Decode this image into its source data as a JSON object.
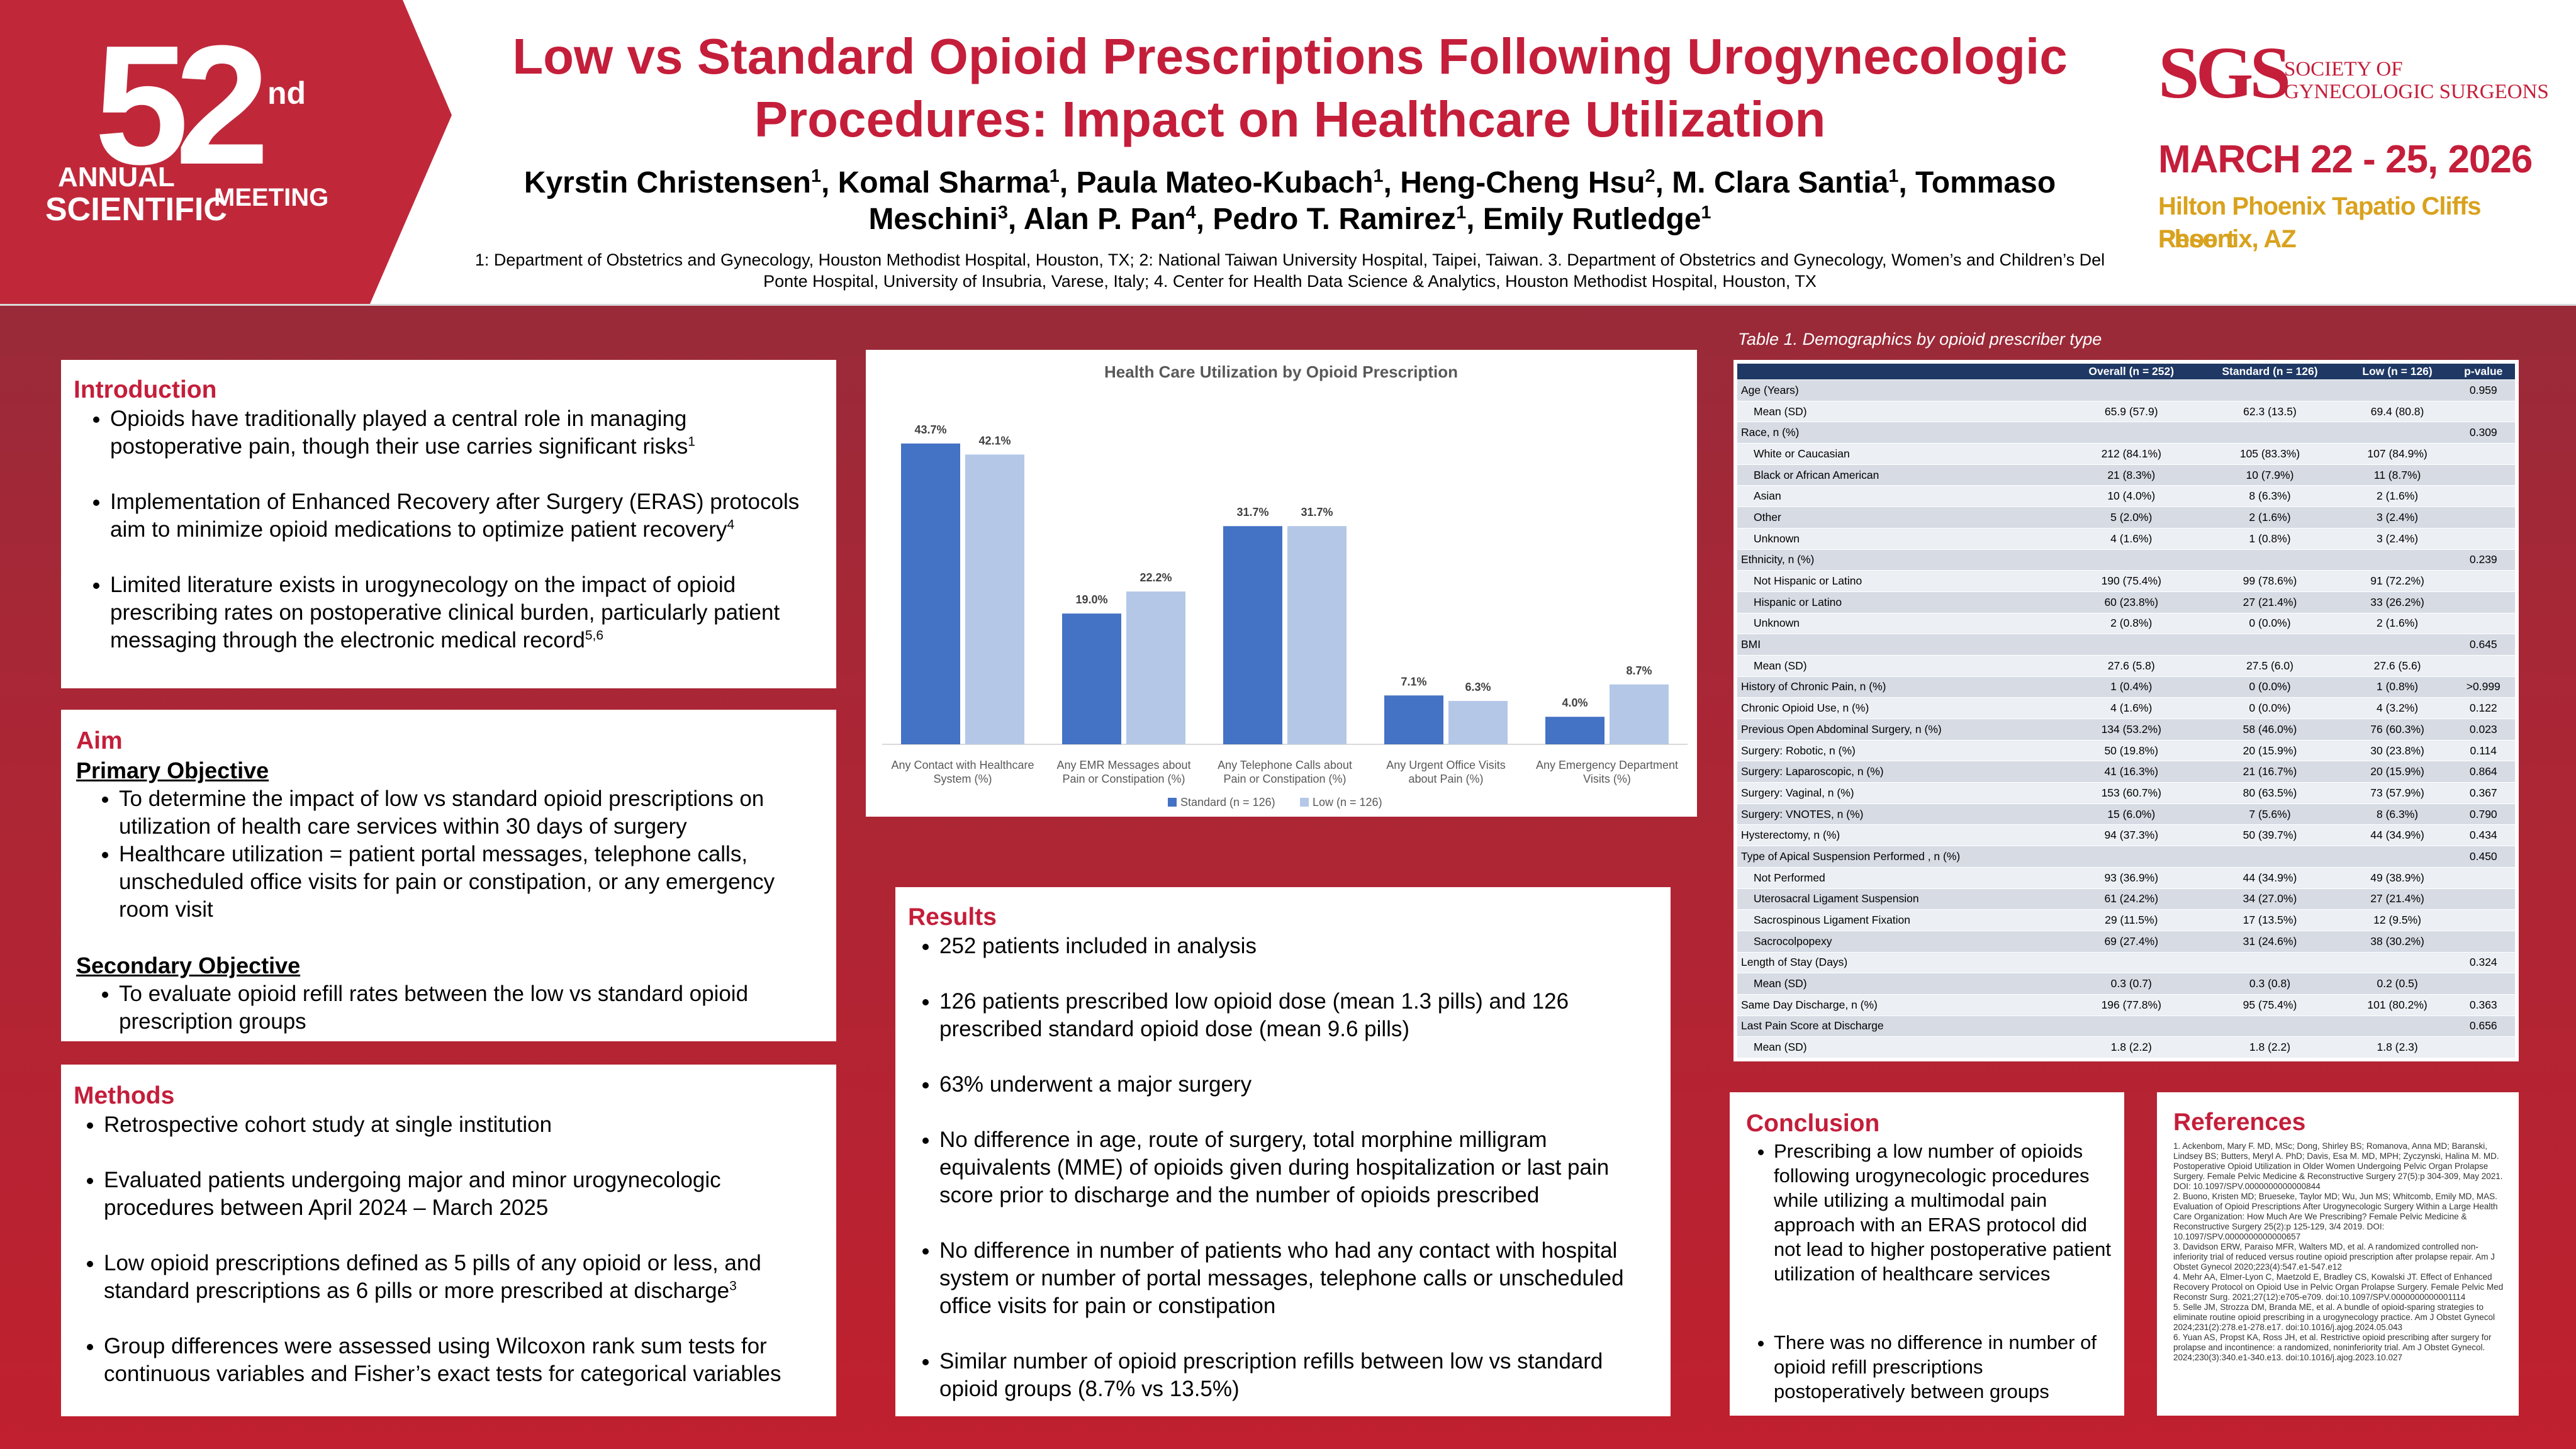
{
  "header": {
    "logo": {
      "number": "52",
      "suffix": "nd",
      "line1": "ANNUAL",
      "line2": "SCIENTIFIC",
      "line3": "MEETING"
    },
    "title": "Low vs Standard Opioid Prescriptions Following Urogynecologic Procedures: Impact on Healthcare Utilization",
    "authors": [
      {
        "text": "Kyrstin Christensen",
        "sup": "1"
      },
      {
        "text": ", Komal Sharma",
        "sup": "1"
      },
      {
        "text": ", Paula Mateo-Kubach",
        "sup": "1"
      },
      {
        "text": ", Heng-Cheng Hsu",
        "sup": "2"
      },
      {
        "text": ", M. Clara Santia",
        "sup": "1"
      },
      {
        "text": ", Tommaso Meschini",
        "sup": "3"
      },
      {
        "text": ", Alan P. Pan",
        "sup": "4"
      },
      {
        "text": ", Pedro T. Ramirez",
        "sup": "1"
      },
      {
        "text": ", Emily Rutledge",
        "sup": "1"
      }
    ],
    "affiliations": "1: Department of Obstetrics and Gynecology, Houston Methodist Hospital, Houston, TX; 2: National Taiwan University Hospital, Taipei, Taiwan. 3. Department of Obstetrics and Gynecology, Women’s and Children’s Del Ponte Hospital, University of Insubria, Varese, Italy; 4. Center for Health Data Science & Analytics, Houston Methodist Hospital, Houston, TX",
    "sponsor": {
      "acronym": "SGS",
      "name_line1": "SOCIETY OF",
      "name_line2": "GYNECOLOGIC SURGEONS",
      "dates": "MARCH 22 - 25, 2026",
      "venue": "Hilton Phoenix Tapatio Cliffs Resort",
      "city": "Phoenix, AZ"
    }
  },
  "introduction": {
    "heading": "Introduction",
    "bullets": [
      {
        "text": "Opioids have traditionally played a central role in managing postoperative pain, though their use carries significant risks",
        "sup": "1"
      },
      {
        "text": "Implementation of Enhanced Recovery after Surgery (ERAS) protocols aim to minimize opioid medications to optimize patient recovery",
        "sup": "4"
      },
      {
        "text": "Limited literature exists in urogynecology on the impact of opioid prescribing rates on postoperative clinical burden, particularly patient messaging  through the electronic medical record",
        "sup": "5,6"
      }
    ]
  },
  "aim": {
    "heading": "Aim",
    "primary": {
      "heading": "Primary Objective",
      "bullets": [
        {
          "text": "To determine the impact of low vs standard opioid prescriptions on utilization of health care services within 30 days of surgery"
        },
        {
          "text": "Healthcare utilization = patient portal messages, telephone calls, unscheduled office visits for pain or constipation, or any emergency room visit"
        }
      ]
    },
    "secondary": {
      "heading": "Secondary Objective",
      "bullets": [
        {
          "text": "To evaluate opioid refill rates between the low vs standard opioid prescription groups"
        }
      ]
    }
  },
  "methods": {
    "heading": "Methods",
    "bullets": [
      {
        "text": "Retrospective cohort study at single institution"
      },
      {
        "text": "Evaluated patients undergoing major and minor urogynecologic procedures between April 2024 – March 2025"
      },
      {
        "text": " Low opioid prescriptions defined as 5 pills of any opioid or less, and standard prescriptions as 6 pills or more prescribed at discharge",
        "sup": "3"
      },
      {
        "text": "Group differences were assessed using Wilcoxon rank sum tests for continuous variables and Fisher’s exact tests for categorical variables"
      }
    ]
  },
  "chart_data": {
    "type": "bar",
    "title": "Health Care Utilization by Opioid Prescription",
    "categories": [
      "Any Contact with Healthcare System (%)",
      "Any EMR Messages about Pain or Constipation (%)",
      "Any Telephone Calls about Pain or Constipation (%)",
      "Any Urgent Office Visits about Pain (%)",
      "Any Emergency Department Visits (%)"
    ],
    "series": [
      {
        "name": "Standard (n = 126)",
        "color": "#4472c4",
        "values": [
          43.7,
          19.0,
          31.7,
          7.1,
          4.0
        ],
        "value_labels": [
          "43.7%",
          "19.0%",
          "31.7%",
          "7.1%",
          "4.0%"
        ]
      },
      {
        "name": "Low (n = 126)",
        "color": "#b4c7e7",
        "values": [
          42.1,
          22.2,
          31.7,
          6.3,
          8.7
        ],
        "value_labels": [
          "42.1%",
          "22.2%",
          "31.7%",
          "6.3%",
          "8.7%"
        ]
      }
    ],
    "ylim": [
      0,
      50
    ],
    "legend": "bottom"
  },
  "results": {
    "heading": "Results",
    "bullets": [
      "252 patients included in analysis",
      "126 patients prescribed low opioid dose (mean 1.3 pills) and 126 prescribed standard opioid dose (mean 9.6 pills)",
      "63% underwent a major surgery",
      "No difference in age, route of surgery, total morphine milligram equivalents (MME) of opioids given during hospitalization or last pain score prior to  discharge and the number of opioids prescribed",
      "No difference in number of patients who had any contact with hospital system or number of portal messages, telephone calls or unscheduled office visits for pain or constipation",
      "Similar number of opioid prescription refills between low vs standard opioid groups (8.7% vs 13.5%)"
    ]
  },
  "table": {
    "caption": "Table 1. Demographics by opioid prescriber type",
    "columns": [
      "Overall (n = 252)",
      "Standard (n = 126)",
      "Low (n = 126)",
      "p-value"
    ],
    "sections": [
      {
        "label": "Age (Years)",
        "p": "0.959",
        "items": [
          [
            "Mean (SD)",
            "65.9 (57.9)",
            "62.3 (13.5)",
            "69.4 (80.8)"
          ]
        ]
      },
      {
        "label": "Race, n (%)",
        "p": "0.309",
        "items": [
          [
            "White or Caucasian",
            "212 (84.1%)",
            "105 (83.3%)",
            "107 (84.9%)"
          ],
          [
            "Black or African American",
            "21 (8.3%)",
            "10 (7.9%)",
            "11 (8.7%)"
          ],
          [
            "Asian",
            "10 (4.0%)",
            "8 (6.3%)",
            "2 (1.6%)"
          ],
          [
            "Other",
            "5 (2.0%)",
            "2 (1.6%)",
            "3 (2.4%)"
          ],
          [
            "Unknown",
            "4 (1.6%)",
            "1 (0.8%)",
            "3 (2.4%)"
          ]
        ]
      },
      {
        "label": "Ethnicity, n (%)",
        "p": "0.239",
        "items": [
          [
            "Not Hispanic or Latino",
            "190 (75.4%)",
            "99 (78.6%)",
            "91 (72.2%)"
          ],
          [
            "Hispanic or Latino",
            "60 (23.8%)",
            "27 (21.4%)",
            "33 (26.2%)"
          ],
          [
            "Unknown",
            "2 (0.8%)",
            "0 (0.0%)",
            "2 (1.6%)"
          ]
        ]
      },
      {
        "label": "BMI",
        "p": "0.645",
        "items": [
          [
            "Mean (SD)",
            "27.6 (5.8)",
            "27.5 (6.0)",
            "27.6 (5.6)"
          ]
        ]
      },
      {
        "label": "History of Chronic Pain, n (%)",
        "values": [
          "1 (0.4%)",
          "0 (0.0%)",
          "1 (0.8%)"
        ],
        "p": ">0.999"
      },
      {
        "label": "Chronic Opioid Use, n (%)",
        "values": [
          "4 (1.6%)",
          "0 (0.0%)",
          "4 (3.2%)"
        ],
        "p": "0.122"
      },
      {
        "label": "Previous Open Abdominal Surgery, n (%)",
        "values": [
          "134 (53.2%)",
          "58 (46.0%)",
          "76 (60.3%)"
        ],
        "p": "0.023"
      },
      {
        "label": "Surgery: Robotic, n (%)",
        "values": [
          "50 (19.8%)",
          "20 (15.9%)",
          "30 (23.8%)"
        ],
        "p": "0.114"
      },
      {
        "label": "Surgery: Laparoscopic, n (%)",
        "values": [
          "41 (16.3%)",
          "21 (16.7%)",
          "20 (15.9%)"
        ],
        "p": "0.864"
      },
      {
        "label": "Surgery: Vaginal, n (%)",
        "values": [
          "153 (60.7%)",
          "80 (63.5%)",
          "73 (57.9%)"
        ],
        "p": "0.367"
      },
      {
        "label": "Surgery: VNOTES, n (%)",
        "values": [
          "15 (6.0%)",
          "7 (5.6%)",
          "8 (6.3%)"
        ],
        "p": "0.790"
      },
      {
        "label": "Hysterectomy, n (%)",
        "values": [
          "94 (37.3%)",
          "50 (39.7%)",
          "44 (34.9%)"
        ],
        "p": "0.434"
      },
      {
        "label": "Type of Apical Suspension Performed , n (%)",
        "p": "0.450",
        "items": [
          [
            "Not Performed",
            "93 (36.9%)",
            "44 (34.9%)",
            "49 (38.9%)"
          ],
          [
            "Uterosacral Ligament Suspension",
            "61 (24.2%)",
            "34 (27.0%)",
            "27 (21.4%)"
          ],
          [
            "Sacrospinous Ligament Fixation",
            "29 (11.5%)",
            "17 (13.5%)",
            "12 (9.5%)"
          ],
          [
            "Sacrocolpopexy",
            "69 (27.4%)",
            "31 (24.6%)",
            "38 (30.2%)"
          ]
        ]
      },
      {
        "label": "Length of Stay (Days)",
        "p": "0.324",
        "items": [
          [
            "Mean (SD)",
            "0.3 (0.7)",
            "0.3 (0.8)",
            "0.2 (0.5)"
          ]
        ]
      },
      {
        "label": "Same Day Discharge, n (%)",
        "values": [
          "196 (77.8%)",
          "95 (75.4%)",
          "101 (80.2%)"
        ],
        "p": "0.363"
      },
      {
        "label": "Last Pain Score at Discharge",
        "p": "0.656",
        "items": [
          [
            "Mean (SD)",
            "1.8 (2.2)",
            "1.8 (2.2)",
            "1.8 (2.3)"
          ]
        ]
      }
    ]
  },
  "conclusion": {
    "heading": "Conclusion",
    "bullets": [
      "Prescribing a low number of opioids following urogynecologic procedures while utilizing a multimodal pain approach with an ERAS protocol did not lead to higher postoperative patient utilization of healthcare services",
      "There was no difference in number of opioid refill prescriptions postoperatively between groups"
    ]
  },
  "references": {
    "heading": "References",
    "items": [
      "1. Ackenbom, Mary F. MD, MSc; Dong, Shirley BS; Romanova, Anna MD; Baranski, Lindsey BS; Butters, Meryl A. PhD; Davis, Esa M. MD, MPH; Zyczynski, Halina M. MD. Postoperative Opioid Utilization in Older Women Undergoing Pelvic Organ Prolapse Surgery. Female Pelvic Medicine & Reconstructive Surgery 27(5):p 304-309, May 2021. DOI: 10.1097/SPV.0000000000000844",
      "2. Buono, Kristen MD; Brueseke, Taylor MD; Wu, Jun MS; Whitcomb, Emily MD, MAS. Evaluation of Opioid Prescriptions After Urogynecologic Surgery Within a Large Health Care Organization: How Much Are We Prescribing? Female Pelvic Medicine & Reconstructive Surgery 25(2):p 125-129, 3/4 2019. DOI: 10.1097/SPV.0000000000000657",
      "3. Davidson ERW, Paraiso MFR, Walters MD, et al. A randomized controlled non-inferiority trial of reduced versus routine opioid prescription after prolapse repair. Am J Obstet Gynecol 2020;223(4):547.e1-547.e12",
      "4. Mehr AA, Elmer-Lyon C, Maetzold E, Bradley CS, Kowalski JT. Effect of Enhanced Recovery Protocol on Opioid Use in Pelvic Organ Prolapse Surgery. Female Pelvic Med Reconstr Surg. 2021;27(12):e705-e709. doi:10.1097/SPV.0000000000001114",
      "5. Selle JM, Strozza DM, Branda ME, et al. A bundle of opioid-sparing strategies to eliminate routine opioid prescribing in a urogynecology practice. Am J Obstet Gynecol 2024;231(2):278.e1-278.e17. doi:10.1016/j.ajog.2024.05.043",
      "6. Yuan AS, Propst KA, Ross JH, et al. Restrictive opioid prescribing after surgery for prolapse and incontinence: a randomized, noninferiority trial. Am J Obstet Gynecol. 2024;230(3):340.e1-340.e13. doi:10.1016/j.ajog.2023.10.027"
    ]
  }
}
